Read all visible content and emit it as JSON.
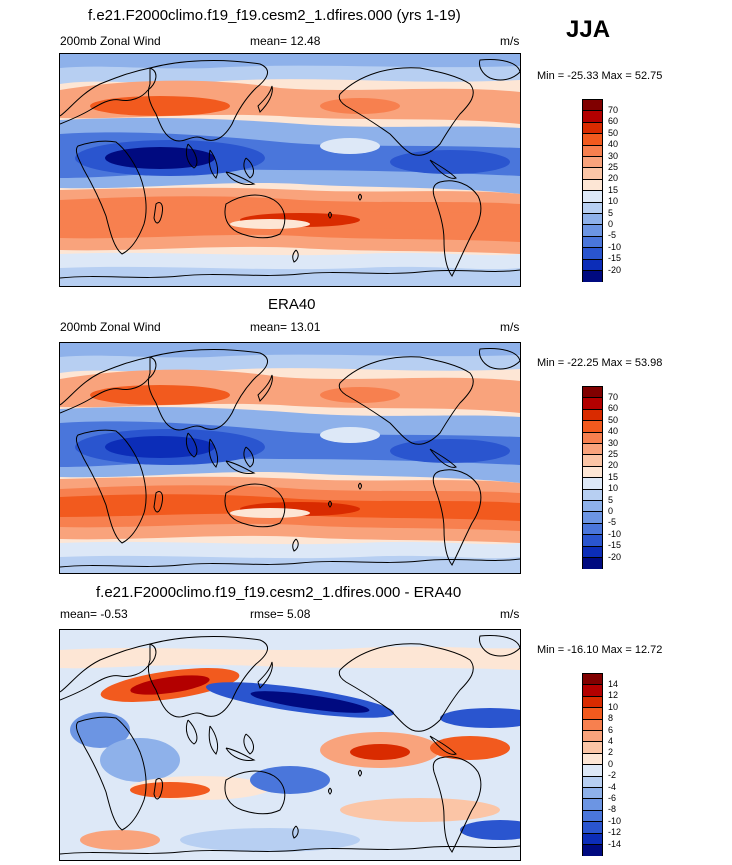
{
  "season": "JJA",
  "panels": [
    {
      "title": "f.e21.F2000climo.f19_f19.cesm2_1.dfires.000 (yrs 1-19)",
      "left_label": "200mb Zonal Wind",
      "mean_label": "mean=  12.48",
      "units": "m/s",
      "minmax": "Min = -25.33 Max =  52.75",
      "colorbar_labels": [
        "70",
        "60",
        "50",
        "40",
        "30",
        "25",
        "20",
        "15",
        "10",
        "5",
        "0",
        "-5",
        "-10",
        "-15",
        "-20"
      ],
      "field": "model"
    },
    {
      "title": "ERA40",
      "left_label": "200mb Zonal Wind",
      "mean_label": "mean=  13.01",
      "units": "m/s",
      "minmax": "Min = -22.25 Max =  53.98",
      "colorbar_labels": [
        "70",
        "60",
        "50",
        "40",
        "30",
        "25",
        "20",
        "15",
        "10",
        "5",
        "0",
        "-5",
        "-10",
        "-15",
        "-20"
      ],
      "field": "obs"
    },
    {
      "title": "f.e21.F2000climo.f19_f19.cesm2_1.dfires.000 - ERA40",
      "left_label": "mean=  -0.53",
      "mean_label": "rmse=   5.08",
      "units": "m/s",
      "minmax": "Min = -16.10 Max =  12.72",
      "colorbar_labels": [
        "14",
        "12",
        "10",
        "8",
        "6",
        "4",
        "2",
        "0",
        "-2",
        "-4",
        "-6",
        "-8",
        "-10",
        "-12",
        "-14"
      ],
      "field": "diff"
    }
  ],
  "colors": [
    "#800000",
    "#b30000",
    "#d92b00",
    "#f25a1e",
    "#f7804f",
    "#f9a37c",
    "#fbc5a6",
    "#fde6d5",
    "#dde8f7",
    "#b7cff2",
    "#8eb1ea",
    "#6c95e3",
    "#4a76db",
    "#2a55cf",
    "#0c2db8",
    "#000a80"
  ]
}
